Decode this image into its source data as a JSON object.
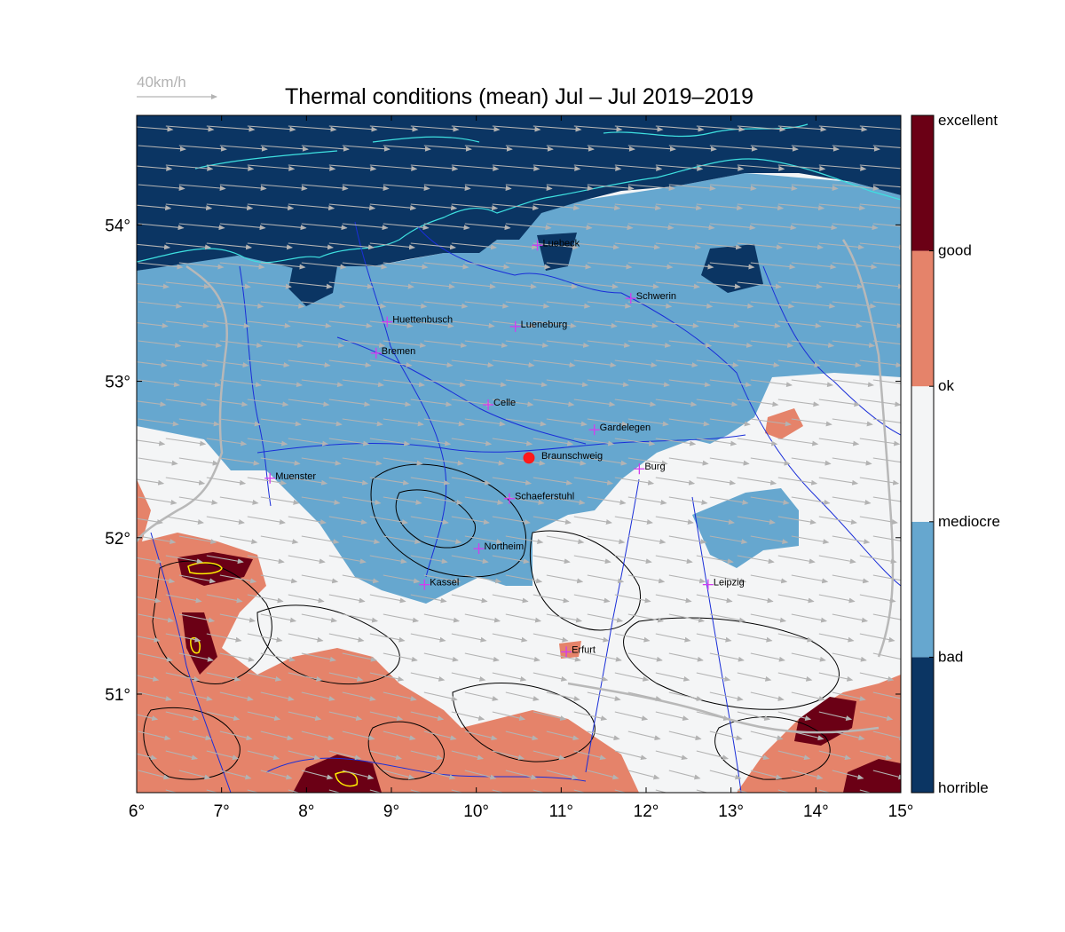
{
  "title": "Thermal conditions (mean) Jul – Jul  2019–2019",
  "wind_reference": {
    "label": "40km/h",
    "speed_kmh": 40
  },
  "map": {
    "lon_range": [
      6,
      15
    ],
    "lat_range": [
      50.37,
      54.7
    ],
    "lon_ticks": [
      {
        "v": 6,
        "label": "6°"
      },
      {
        "v": 7,
        "label": "7°"
      },
      {
        "v": 8,
        "label": "8°"
      },
      {
        "v": 9,
        "label": "9°"
      },
      {
        "v": 10,
        "label": "10°"
      },
      {
        "v": 11,
        "label": "11°"
      },
      {
        "v": 12,
        "label": "12°"
      },
      {
        "v": 13,
        "label": "13°"
      },
      {
        "v": 14,
        "label": "14°"
      },
      {
        "v": 15,
        "label": "15°"
      }
    ],
    "lat_ticks": [
      {
        "v": 51,
        "label": "51°"
      },
      {
        "v": 52,
        "label": "52°"
      },
      {
        "v": 53,
        "label": "53°"
      },
      {
        "v": 54,
        "label": "54°"
      }
    ],
    "wind_direction": "west-northwest to east-southeast"
  },
  "colorbar": {
    "classes": [
      {
        "label": "horrible",
        "color": "#0b3563"
      },
      {
        "label": "bad",
        "color": "#66a7cf"
      },
      {
        "label": "mediocre",
        "color": "#f4f5f6"
      },
      {
        "label": "ok",
        "color": "#e5836a"
      },
      {
        "label": "good",
        "color": "#6b0015"
      }
    ],
    "boundary_labels": [
      "horrible",
      "bad",
      "mediocre",
      "ok",
      "good",
      "excellent"
    ]
  },
  "line_colors": {
    "coast": "#3ee0e0",
    "rivers": "#1a2ed8",
    "borders": "#b8b8b8",
    "terrain": "#000000",
    "peak": "#ffee00"
  },
  "cities": [
    {
      "name": "Luebeck",
      "lon": 10.72,
      "lat": 53.87
    },
    {
      "name": "Schwerin",
      "lon": 11.82,
      "lat": 53.53
    },
    {
      "name": "Huettenbusch",
      "lon": 8.95,
      "lat": 53.38
    },
    {
      "name": "Lueneburg",
      "lon": 10.46,
      "lat": 53.35
    },
    {
      "name": "Bremen",
      "lon": 8.82,
      "lat": 53.18
    },
    {
      "name": "Celle",
      "lon": 10.14,
      "lat": 52.85
    },
    {
      "name": "Gardelegen",
      "lon": 11.39,
      "lat": 52.69
    },
    {
      "name": "Braunschweig",
      "lon": 10.62,
      "lat": 52.51,
      "home": true
    },
    {
      "name": "Burg",
      "lon": 11.92,
      "lat": 52.44
    },
    {
      "name": "Muenster",
      "lon": 7.57,
      "lat": 52.38
    },
    {
      "name": "Schaeferstuhl",
      "lon": 10.39,
      "lat": 52.25
    },
    {
      "name": "Northeim",
      "lon": 10.03,
      "lat": 51.93
    },
    {
      "name": "Kassel",
      "lon": 9.39,
      "lat": 51.7
    },
    {
      "name": "Leipzig",
      "lon": 12.73,
      "lat": 51.7
    },
    {
      "name": "Erfurt",
      "lon": 11.06,
      "lat": 51.27
    }
  ]
}
